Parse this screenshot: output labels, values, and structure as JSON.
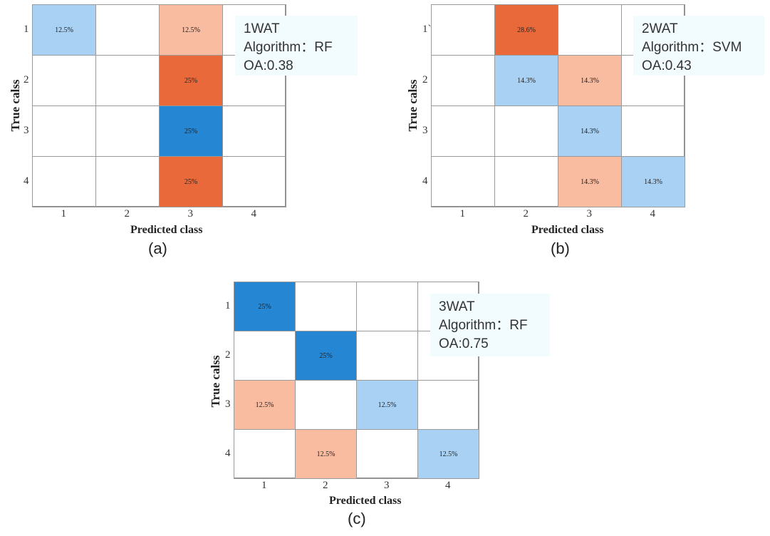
{
  "chart_data": [
    {
      "type": "heatmap",
      "id": "a",
      "caption": "(a)",
      "info": {
        "title": "1WAT",
        "algorithm": "Algorithm：RF",
        "oa": "OA:0.38"
      },
      "xlabel": "Predicted class",
      "ylabel": "True calss",
      "x_ticks": [
        "1",
        "2",
        "3",
        "4"
      ],
      "y_ticks": [
        "1",
        "2",
        "3",
        "4"
      ],
      "cells": [
        {
          "row": 1,
          "col": 1,
          "label": "12.5%",
          "color": "#a9d1f3"
        },
        {
          "row": 1,
          "col": 3,
          "label": "12.5%",
          "color": "#f9bca1"
        },
        {
          "row": 2,
          "col": 3,
          "label": "25%",
          "color": "#e9693a"
        },
        {
          "row": 3,
          "col": 3,
          "label": "25%",
          "color": "#2586d3"
        },
        {
          "row": 4,
          "col": 3,
          "label": "25%",
          "color": "#e9693a"
        }
      ]
    },
    {
      "type": "heatmap",
      "id": "b",
      "caption": "(b)",
      "info": {
        "title": "2WAT",
        "algorithm": "Algorithm：SVM",
        "oa": "OA:0.43"
      },
      "xlabel": "Predicted class",
      "ylabel": "True calss",
      "x_ticks": [
        "1",
        "2",
        "3",
        "4"
      ],
      "y_ticks": [
        "1`",
        "2",
        "3",
        "4"
      ],
      "cells": [
        {
          "row": 1,
          "col": 2,
          "label": "28.6%",
          "color": "#e9693a"
        },
        {
          "row": 2,
          "col": 2,
          "label": "14.3%",
          "color": "#a9d1f3"
        },
        {
          "row": 2,
          "col": 3,
          "label": "14.3%",
          "color": "#f9bca1"
        },
        {
          "row": 3,
          "col": 3,
          "label": "14.3%",
          "color": "#a9d1f3"
        },
        {
          "row": 4,
          "col": 3,
          "label": "14.3%",
          "color": "#f9bca1"
        },
        {
          "row": 4,
          "col": 4,
          "label": "14.3%",
          "color": "#a9d1f3"
        }
      ]
    },
    {
      "type": "heatmap",
      "id": "c",
      "caption": "(c)",
      "info": {
        "title": "3WAT",
        "algorithm": "Algorithm：RF",
        "oa": "OA:0.75"
      },
      "xlabel": "Predicted class",
      "ylabel": "True calss",
      "x_ticks": [
        "1",
        "2",
        "3",
        "4"
      ],
      "y_ticks": [
        "1",
        "2",
        "3",
        "4"
      ],
      "cells": [
        {
          "row": 1,
          "col": 1,
          "label": "25%",
          "color": "#2586d3"
        },
        {
          "row": 2,
          "col": 2,
          "label": "25%",
          "color": "#2586d3"
        },
        {
          "row": 3,
          "col": 1,
          "label": "12.5%",
          "color": "#f9bca1"
        },
        {
          "row": 3,
          "col": 3,
          "label": "12.5%",
          "color": "#a9d1f3"
        },
        {
          "row": 4,
          "col": 2,
          "label": "12.5%",
          "color": "#f9bca1"
        },
        {
          "row": 4,
          "col": 4,
          "label": "12.5%",
          "color": "#a9d1f3"
        }
      ]
    }
  ]
}
